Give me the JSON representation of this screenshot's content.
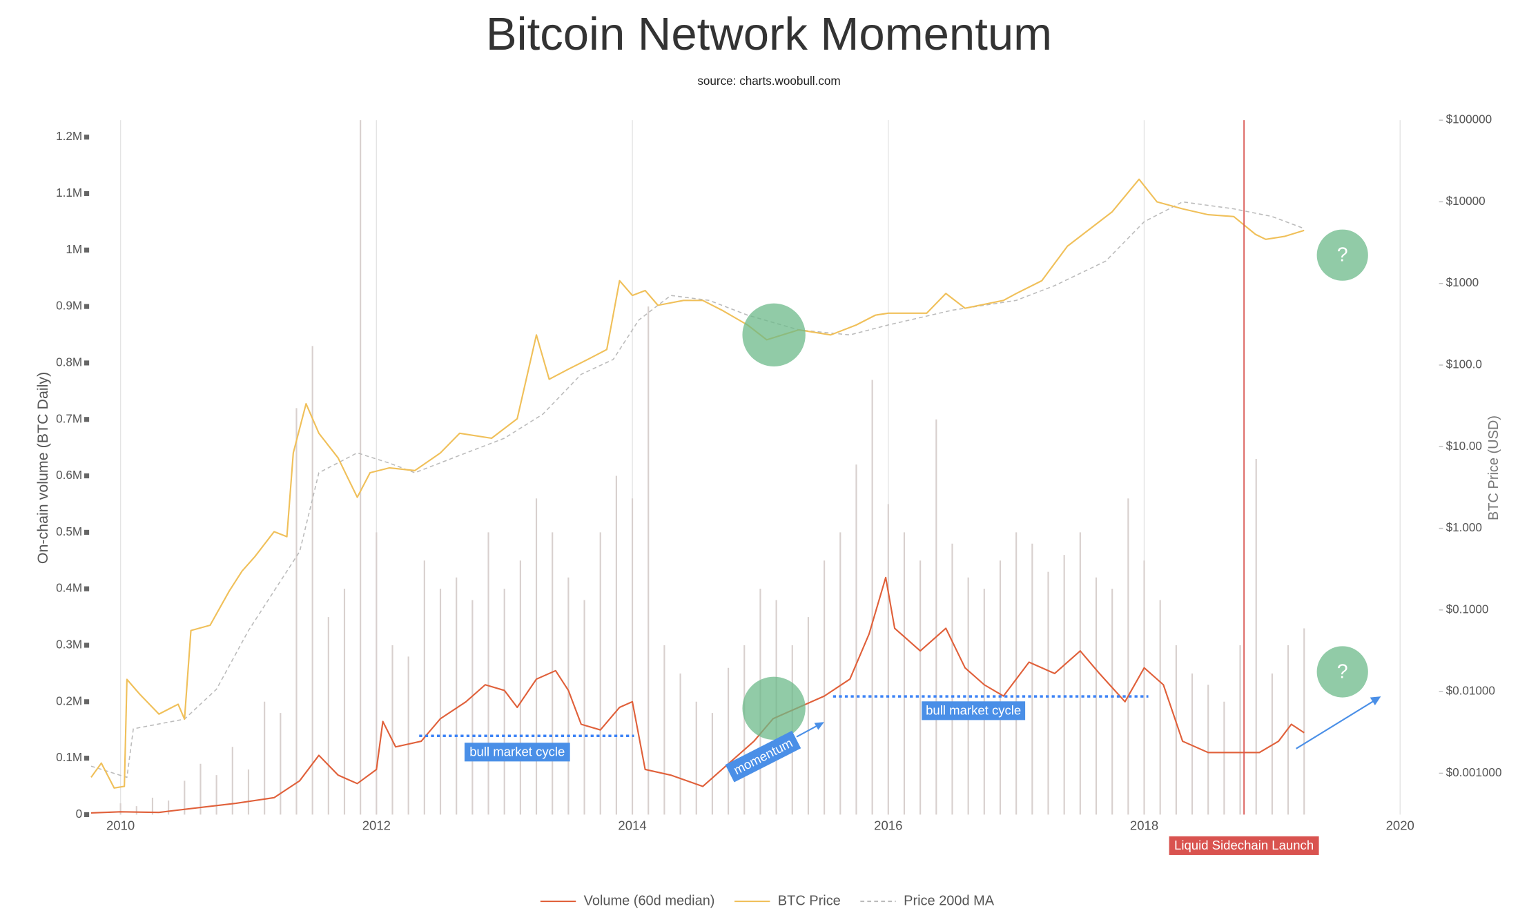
{
  "chart_data": {
    "type": "line",
    "title": "Bitcoin Network Momentum",
    "subtitle": "source: charts.woobull.com",
    "y_label": "On-chain volume (BTC Daily)",
    "y2_label": "BTC Price (USD)",
    "xlim": [
      2009.77,
      2020.15
    ],
    "xticks": [
      2010,
      2012,
      2014,
      2016,
      2018,
      2020
    ],
    "ylim": [
      0,
      1230000
    ],
    "yticks": [
      {
        "value": 0,
        "label": "0"
      },
      {
        "value": 100000,
        "label": "0.1M"
      },
      {
        "value": 200000,
        "label": "0.2M"
      },
      {
        "value": 300000,
        "label": "0.3M"
      },
      {
        "value": 400000,
        "label": "0.4M"
      },
      {
        "value": 500000,
        "label": "0.5M"
      },
      {
        "value": 600000,
        "label": "0.6M"
      },
      {
        "value": 700000,
        "label": "0.7M"
      },
      {
        "value": 800000,
        "label": "0.8M"
      },
      {
        "value": 900000,
        "label": "0.9M"
      },
      {
        "value": 1000000,
        "label": "1M"
      },
      {
        "value": 1100000,
        "label": "1.1M"
      },
      {
        "value": 1200000,
        "label": "1.2M"
      }
    ],
    "y2lim": [
      0.000311,
      100000
    ],
    "y2log": true,
    "y2ticks": [
      {
        "value": 0.001,
        "label": "$0.001000"
      },
      {
        "value": 0.01,
        "label": "$0.01000"
      },
      {
        "value": 0.1,
        "label": "$0.1000"
      },
      {
        "value": 1,
        "label": "$1.000"
      },
      {
        "value": 10,
        "label": "$10.00"
      },
      {
        "value": 100,
        "label": "$100.0"
      },
      {
        "value": 1000,
        "label": "$1000"
      },
      {
        "value": 10000,
        "label": "$10000"
      },
      {
        "value": 100000,
        "label": "$100000"
      }
    ],
    "grid": true,
    "legend_position": "bottom",
    "daily_volume": {
      "color": "#d8d0ce",
      "x": [
        2010,
        2010.125,
        2010.25,
        2010.375,
        2010.5,
        2010.625,
        2010.75,
        2010.875,
        2011,
        2011.125,
        2011.25,
        2011.375,
        2011.5,
        2011.625,
        2011.75,
        2011.875,
        2012,
        2012.125,
        2012.25,
        2012.375,
        2012.5,
        2012.625,
        2012.75,
        2012.875,
        2013,
        2013.125,
        2013.25,
        2013.375,
        2013.5,
        2013.625,
        2013.75,
        2013.875,
        2014,
        2014.125,
        2014.25,
        2014.375,
        2014.5,
        2014.625,
        2014.75,
        2014.875,
        2015,
        2015.125,
        2015.25,
        2015.375,
        2015.5,
        2015.625,
        2015.75,
        2015.875,
        2016,
        2016.125,
        2016.25,
        2016.375,
        2016.5,
        2016.625,
        2016.75,
        2016.875,
        2017,
        2017.125,
        2017.25,
        2017.375,
        2017.5,
        2017.625,
        2017.75,
        2017.875,
        2018,
        2018.125,
        2018.25,
        2018.375,
        2018.5,
        2018.625,
        2018.75,
        2018.875,
        2019,
        2019.125,
        2019.25
      ],
      "values": [
        20000,
        15000,
        30000,
        25000,
        60000,
        90000,
        70000,
        120000,
        80000,
        200000,
        180000,
        720000,
        830000,
        350000,
        400000,
        1230000,
        500000,
        300000,
        280000,
        450000,
        400000,
        420000,
        380000,
        500000,
        400000,
        450000,
        560000,
        500000,
        420000,
        380000,
        500000,
        600000,
        560000,
        900000,
        300000,
        250000,
        200000,
        180000,
        260000,
        300000,
        400000,
        380000,
        300000,
        350000,
        450000,
        500000,
        620000,
        770000,
        550000,
        500000,
        450000,
        700000,
        480000,
        420000,
        400000,
        450000,
        500000,
        480000,
        430000,
        460000,
        500000,
        420000,
        400000,
        560000,
        450000,
        380000,
        300000,
        250000,
        230000,
        200000,
        300000,
        630000,
        250000,
        300000,
        330000
      ]
    },
    "series": [
      {
        "name": "Volume (60d median)",
        "color": "#e0603a",
        "dash": false,
        "axis": "y",
        "x": [
          2009.77,
          2010.0,
          2010.3,
          2010.6,
          2010.9,
          2011.2,
          2011.4,
          2011.55,
          2011.7,
          2011.85,
          2012.0,
          2012.05,
          2012.15,
          2012.35,
          2012.5,
          2012.7,
          2012.85,
          2013.0,
          2013.1,
          2013.25,
          2013.4,
          2013.5,
          2013.6,
          2013.75,
          2013.9,
          2014.0,
          2014.1,
          2014.3,
          2014.55,
          2014.75,
          2014.95,
          2015.1,
          2015.3,
          2015.5,
          2015.7,
          2015.85,
          2015.98,
          2016.05,
          2016.25,
          2016.45,
          2016.6,
          2016.75,
          2016.9,
          2017.1,
          2017.3,
          2017.5,
          2017.65,
          2017.85,
          2018.0,
          2018.15,
          2018.3,
          2018.5,
          2018.7,
          2018.9,
          2019.05,
          2019.15,
          2019.25
        ],
        "values": [
          3000,
          5000,
          4000,
          12000,
          20000,
          30000,
          60000,
          105000,
          70000,
          55000,
          80000,
          165000,
          120000,
          130000,
          170000,
          200000,
          230000,
          220000,
          190000,
          240000,
          255000,
          220000,
          160000,
          150000,
          190000,
          200000,
          80000,
          70000,
          50000,
          90000,
          130000,
          170000,
          190000,
          210000,
          240000,
          320000,
          420000,
          330000,
          290000,
          330000,
          260000,
          230000,
          210000,
          270000,
          250000,
          290000,
          250000,
          200000,
          260000,
          230000,
          130000,
          110000,
          110000,
          110000,
          130000,
          160000,
          145000
        ]
      },
      {
        "name": "BTC Price",
        "color": "#f0c05a",
        "dash": false,
        "axis": "y2",
        "x": [
          2009.77,
          2009.85,
          2009.95,
          2010.03,
          2010.05,
          2010.15,
          2010.3,
          2010.45,
          2010.5,
          2010.55,
          2010.7,
          2010.85,
          2010.95,
          2011.05,
          2011.2,
          2011.3,
          2011.35,
          2011.45,
          2011.55,
          2011.7,
          2011.85,
          2011.95,
          2012.1,
          2012.3,
          2012.5,
          2012.65,
          2012.9,
          2013.1,
          2013.25,
          2013.35,
          2013.5,
          2013.65,
          2013.8,
          2013.9,
          2014.0,
          2014.1,
          2014.2,
          2014.4,
          2014.55,
          2014.7,
          2014.9,
          2015.05,
          2015.3,
          2015.55,
          2015.75,
          2015.9,
          2016.0,
          2016.3,
          2016.45,
          2016.6,
          2016.9,
          2017.0,
          2017.2,
          2017.4,
          2017.6,
          2017.75,
          2017.96,
          2018.1,
          2018.3,
          2018.5,
          2018.7,
          2018.87,
          2018.95,
          2019.1,
          2019.25
        ],
        "values": [
          0.00089,
          0.00133,
          0.00066,
          0.00069,
          0.0141,
          0.0093,
          0.0053,
          0.007,
          0.0046,
          0.056,
          0.065,
          0.171,
          0.3,
          0.45,
          0.91,
          0.79,
          8.4,
          33.6,
          14.6,
          7.3,
          2.4,
          4.8,
          5.5,
          5.1,
          8.4,
          14.6,
          12.7,
          22,
          234,
          67,
          89,
          117,
          155,
          1080,
          713,
          819,
          540,
          620,
          620,
          470,
          310,
          204,
          270,
          234,
          310,
          409,
          432,
          432,
          753,
          497,
          620,
          753,
          1080,
          2860,
          4980,
          7550,
          18900,
          9980,
          8200,
          6950,
          6600,
          3990,
          3470,
          3780,
          4460
        ]
      },
      {
        "name": "Price 200d MA",
        "color": "#bbbbbb",
        "dash": true,
        "axis": "y2",
        "x": [
          2009.77,
          2010.05,
          2010.1,
          2010.5,
          2010.75,
          2011.0,
          2011.2,
          2011.4,
          2011.55,
          2011.85,
          2012.1,
          2012.3,
          2012.6,
          2013.0,
          2013.3,
          2013.6,
          2013.85,
          2014.05,
          2014.3,
          2014.6,
          2014.9,
          2015.3,
          2015.7,
          2016.0,
          2016.5,
          2017.0,
          2017.3,
          2017.7,
          2018.0,
          2018.3,
          2018.7,
          2019.0,
          2019.25
        ],
        "values": [
          0.00122,
          0.00089,
          0.0035,
          0.0046,
          0.0107,
          0.056,
          0.171,
          0.52,
          4.8,
          8.4,
          6.3,
          4.8,
          7.3,
          12.7,
          25,
          77,
          117,
          356,
          713,
          620,
          409,
          270,
          234,
          310,
          470,
          620,
          940,
          1880,
          5700,
          9980,
          8200,
          6600,
          4700
        ]
      }
    ],
    "annotations": [
      {
        "text": "bull market cycle"
      },
      {
        "text": "bull market cycle"
      },
      {
        "text": "momentum"
      },
      {
        "text": "?"
      },
      {
        "text": "?"
      }
    ],
    "event": {
      "text": "Liquid Sidechain Launch",
      "x": 2018.78
    }
  }
}
